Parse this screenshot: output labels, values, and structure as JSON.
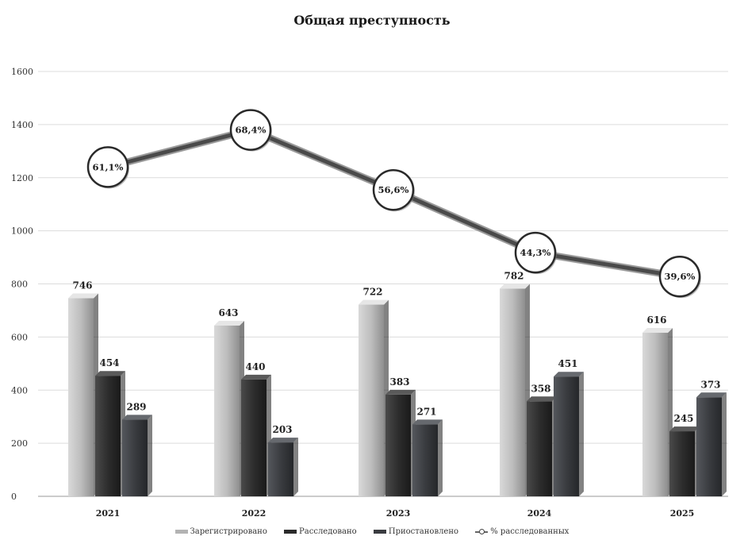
{
  "chart_data": {
    "type": "bar",
    "title": "Общая преступность",
    "categories": [
      "2021",
      "2022",
      "2023",
      "2024",
      "2025"
    ],
    "ylim": [
      0,
      1600
    ],
    "yticks": [
      0,
      200,
      400,
      600,
      800,
      1000,
      1200,
      1400,
      1600
    ],
    "grid": true,
    "legend_position": "bottom",
    "series": [
      {
        "name": "Зарегистрировано",
        "kind": "bar",
        "color": "#b3b3b3",
        "values": [
          746,
          643,
          722,
          782,
          616
        ]
      },
      {
        "name": "Расследовано",
        "kind": "bar",
        "color": "#2b2b2b",
        "values": [
          454,
          440,
          383,
          358,
          245
        ]
      },
      {
        "name": "Приостановлено",
        "kind": "bar",
        "color": "#3a3c40",
        "values": [
          289,
          203,
          271,
          451,
          373
        ]
      },
      {
        "name": "% расследованных",
        "kind": "line",
        "color": "#4a4a4a",
        "values": [
          61.1,
          68.4,
          56.6,
          44.3,
          39.6
        ],
        "labels": [
          "61,1%",
          "68,4%",
          "56,6%",
          "44,3%",
          "39,6%"
        ]
      }
    ]
  }
}
